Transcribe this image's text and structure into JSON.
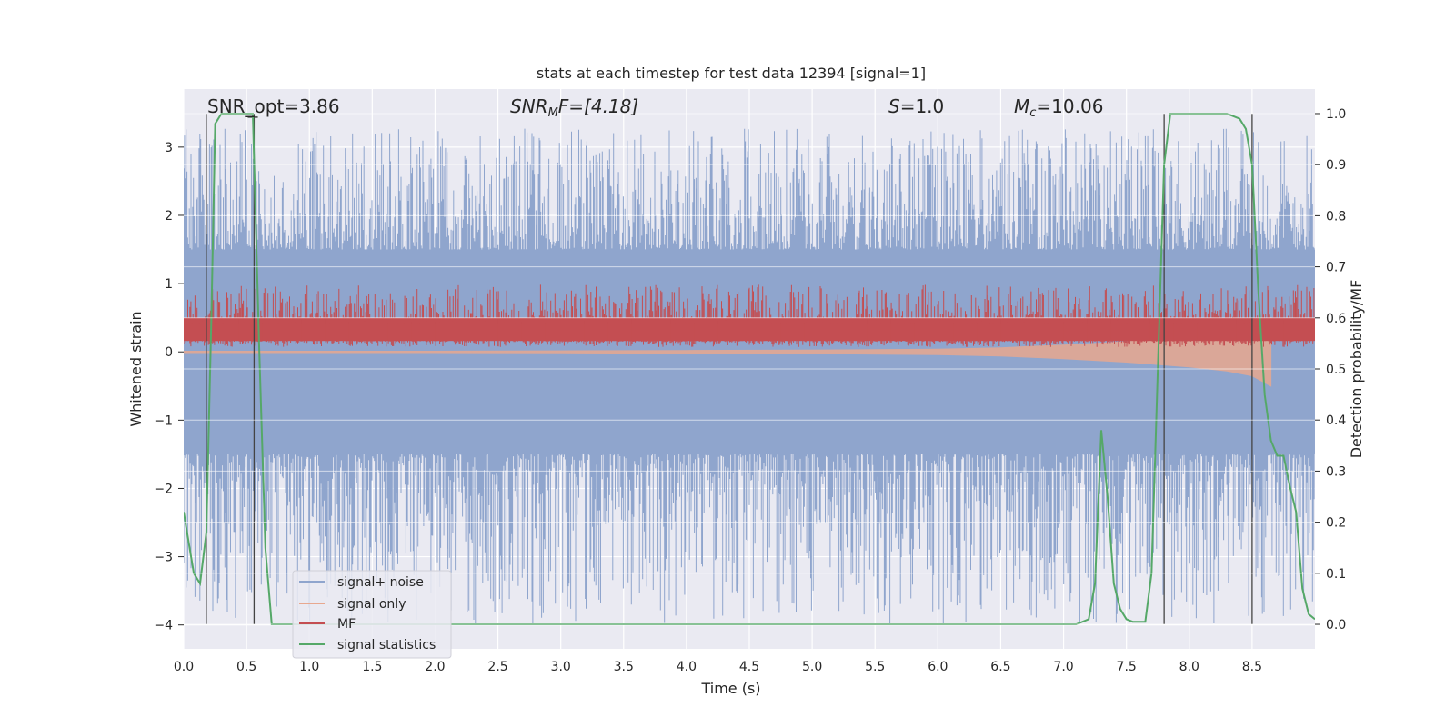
{
  "chart_data": {
    "type": "line",
    "title": "stats at each timestep for test data 12394 [signal=1]",
    "xlabel": "Time (s)",
    "ylabel": "Whitened strain",
    "y2label": "Detection probability/MF",
    "xlim": [
      0.0,
      9.0
    ],
    "ylim": [
      -4.35,
      3.85
    ],
    "y2lim": [
      -0.048,
      1.048
    ],
    "xticks": [
      "0.0",
      "0.5",
      "1.0",
      "1.5",
      "2.0",
      "2.5",
      "3.0",
      "3.5",
      "4.0",
      "4.5",
      "5.0",
      "5.5",
      "6.0",
      "6.5",
      "7.0",
      "7.5",
      "8.0",
      "8.5"
    ],
    "xtick_values": [
      0.0,
      0.5,
      1.0,
      1.5,
      2.0,
      2.5,
      3.0,
      3.5,
      4.0,
      4.5,
      5.0,
      5.5,
      6.0,
      6.5,
      7.0,
      7.5,
      8.0,
      8.5
    ],
    "yticks": [
      "3",
      "2",
      "1",
      "0",
      "−1",
      "−2",
      "−3",
      "−4"
    ],
    "ytick_values": [
      3,
      2,
      1,
      0,
      -1,
      -2,
      -3,
      -4
    ],
    "y2ticks": [
      "1.0",
      "0.9",
      "0.8",
      "0.7",
      "0.6",
      "0.5",
      "0.4",
      "0.3",
      "0.2",
      "0.1",
      "0.0"
    ],
    "y2tick_values": [
      1.0,
      0.9,
      0.8,
      0.7,
      0.6,
      0.5,
      0.4,
      0.3,
      0.2,
      0.1,
      0.0
    ],
    "grid": true,
    "legend_position": "bottom-left",
    "annotations": {
      "snr_opt": "SNR_opt=3.86",
      "snr_mf_main": "SNR",
      "snr_mf_sub": "M",
      "snr_mf_rest": "F=[4.18]",
      "s_main": "S",
      "s_rest": "=1.0",
      "mc_main": "M",
      "mc_sub": "c",
      "mc_rest": "=10.06"
    },
    "vertical_lines": [
      0.18,
      0.56,
      7.8,
      8.5
    ],
    "series": [
      {
        "name": "signal+ noise",
        "color": "#8fa5cd",
        "axis": "left",
        "description": "noisy strain, approx range -4 to 3.3",
        "envelope": {
          "top": 1.5,
          "bottom": -1.5,
          "spike_max": 3.27,
          "spike_min": -4.0
        }
      },
      {
        "name": "signal only",
        "color": "#e8a88f",
        "axis": "left",
        "x": [
          0.0,
          1.0,
          2.0,
          3.0,
          4.0,
          5.0,
          6.0,
          6.5,
          7.0,
          7.5,
          8.0,
          8.3,
          8.5,
          8.65
        ],
        "amplitude": [
          0.01,
          0.01,
          0.01,
          0.015,
          0.02,
          0.025,
          0.04,
          0.06,
          0.1,
          0.15,
          0.22,
          0.28,
          0.35,
          0.5
        ]
      },
      {
        "name": "MF",
        "color": "#c44e52",
        "axis": "right",
        "description": "matched filter output, fluctuating approx 0.55 to 0.65"
      },
      {
        "name": "signal statistics",
        "color": "#55a868",
        "axis": "right",
        "x": [
          0.0,
          0.08,
          0.13,
          0.18,
          0.22,
          0.25,
          0.3,
          0.35,
          0.45,
          0.55,
          0.6,
          0.65,
          0.7,
          1.0,
          2.0,
          3.0,
          4.0,
          5.0,
          6.0,
          7.0,
          7.1,
          7.2,
          7.25,
          7.3,
          7.35,
          7.4,
          7.45,
          7.5,
          7.55,
          7.6,
          7.65,
          7.7,
          7.75,
          7.8,
          7.85,
          7.9,
          8.0,
          8.3,
          8.4,
          8.45,
          8.5,
          8.55,
          8.6,
          8.65,
          8.7,
          8.75,
          8.8,
          8.85,
          8.9,
          8.95,
          9.0
        ],
        "y": [
          0.22,
          0.1,
          0.08,
          0.18,
          0.6,
          0.98,
          1.0,
          1.0,
          1.0,
          1.0,
          0.55,
          0.15,
          0.0,
          0.0,
          0.0,
          0.0,
          0.0,
          0.0,
          0.0,
          0.0,
          0.0,
          0.01,
          0.08,
          0.38,
          0.25,
          0.08,
          0.03,
          0.01,
          0.005,
          0.005,
          0.005,
          0.1,
          0.5,
          0.9,
          1.0,
          1.0,
          1.0,
          1.0,
          0.99,
          0.97,
          0.9,
          0.65,
          0.45,
          0.36,
          0.33,
          0.33,
          0.27,
          0.22,
          0.07,
          0.02,
          0.01
        ]
      }
    ]
  }
}
